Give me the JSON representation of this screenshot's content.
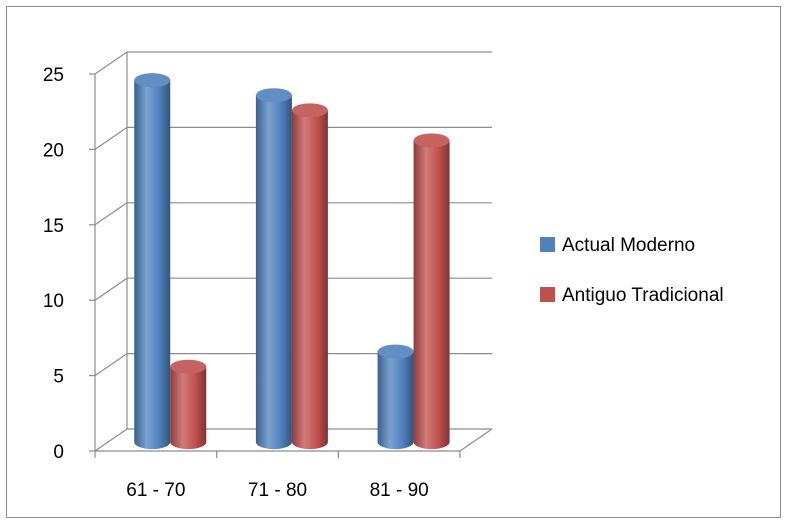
{
  "chart_data": {
    "type": "bar",
    "categories": [
      "61 - 70",
      "71 - 80",
      "81 - 90"
    ],
    "series": [
      {
        "name": "Actual Moderno",
        "values": [
          24,
          23,
          6
        ],
        "color": "#4f81bd"
      },
      {
        "name": "Antiguo Tradicional",
        "values": [
          5,
          22,
          20
        ],
        "color": "#c0504d"
      }
    ],
    "ylim": [
      0,
      25
    ],
    "yticks": [
      "0",
      "5",
      "10",
      "15",
      "20",
      "25"
    ],
    "grid": true,
    "legend": "right",
    "style": "3d-cylinder"
  }
}
